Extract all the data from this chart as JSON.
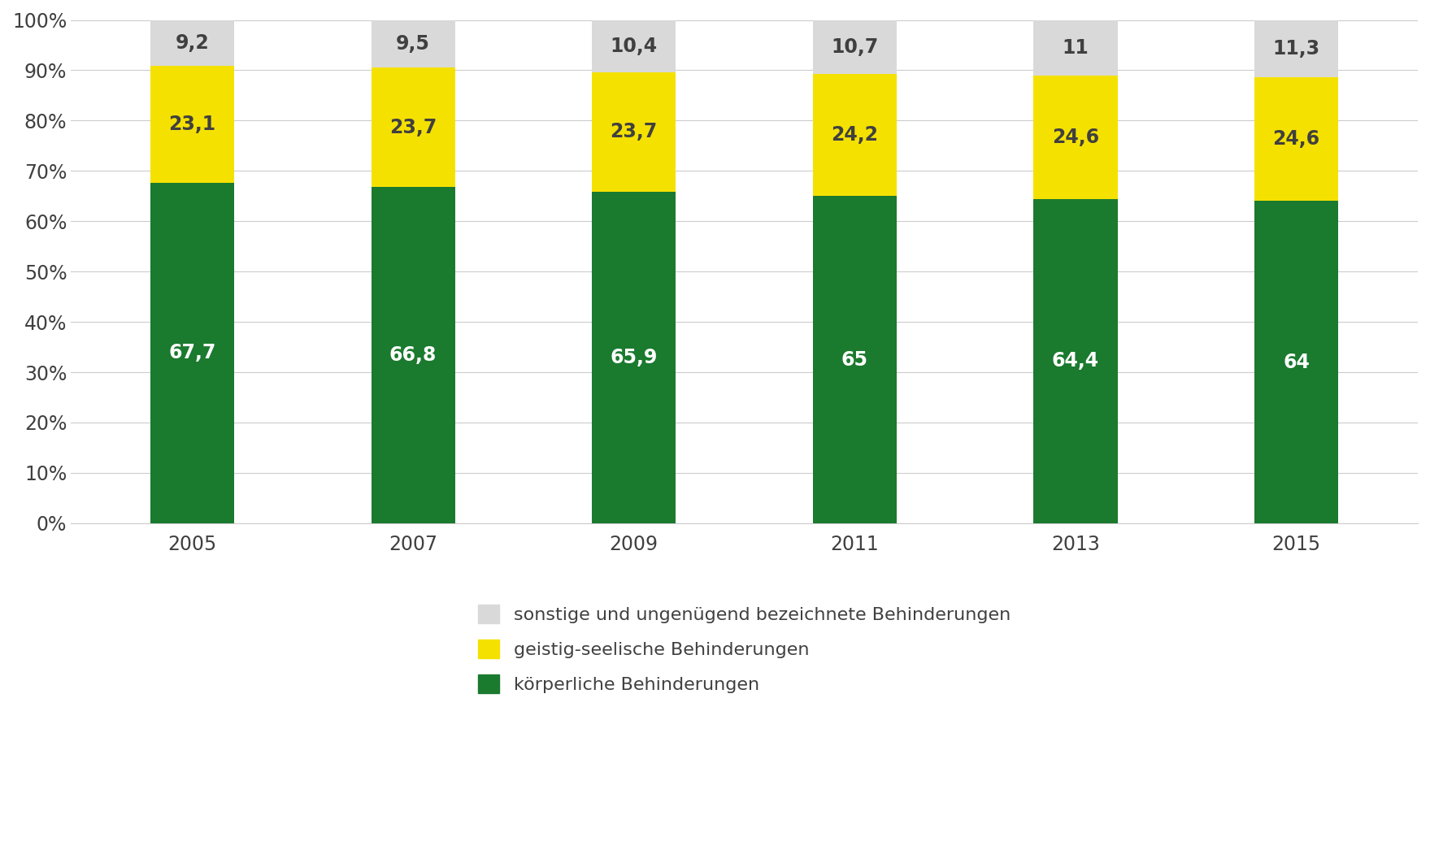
{
  "years": [
    "2005",
    "2007",
    "2009",
    "2011",
    "2013",
    "2015"
  ],
  "koerperlich": [
    67.7,
    66.8,
    65.9,
    65.0,
    64.4,
    64.0
  ],
  "geistig": [
    23.1,
    23.7,
    23.7,
    24.2,
    24.6,
    24.6
  ],
  "sonstige": [
    9.2,
    9.5,
    10.4,
    10.7,
    11.0,
    11.3
  ],
  "koerperlich_labels": [
    "67,7",
    "66,8",
    "65,9",
    "65",
    "64,4",
    "64"
  ],
  "geistig_labels": [
    "23,1",
    "23,7",
    "23,7",
    "24,2",
    "24,6",
    "24,6"
  ],
  "sonstige_labels": [
    "9,2",
    "9,5",
    "10,4",
    "10,7",
    "11",
    "11,3"
  ],
  "color_koerperlich": "#1a7a2e",
  "color_geistig": "#f5e100",
  "color_sonstige": "#d9d9d9",
  "color_text_dark": "#404040",
  "color_text_white": "#ffffff",
  "bar_width": 0.38,
  "legend_labels": [
    "sonstige und ungenügend bezeichnete Behinderungen",
    "geistig-seelische Behinderungen",
    "körperliche Behinderungen"
  ],
  "ytick_labels": [
    "0%",
    "10%",
    "20%",
    "30%",
    "40%",
    "50%",
    "60%",
    "70%",
    "80%",
    "90%",
    "100%"
  ],
  "ylim": [
    0,
    100
  ],
  "background_color": "#ffffff",
  "grid_color": "#cccccc"
}
